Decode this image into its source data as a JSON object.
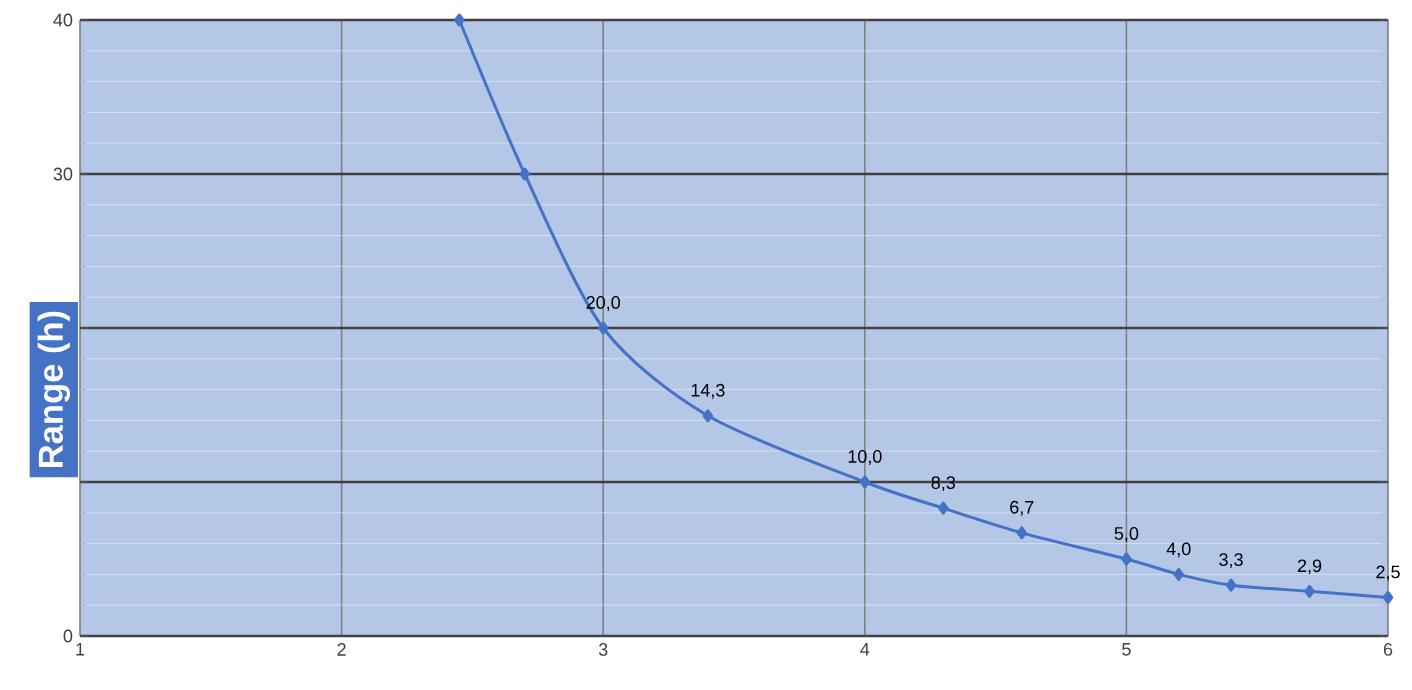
{
  "chart_data": {
    "type": "line",
    "ylabel": "Range (h)",
    "x": [
      2.45,
      2.7,
      3,
      3.4,
      4,
      4.3,
      4.6,
      5,
      5.2,
      5.4,
      5.7,
      6
    ],
    "series": [
      {
        "color": "#4472c4",
        "values": [
          40,
          30,
          20.0,
          14.3,
          10.0,
          8.3,
          6.7,
          5.0,
          4.0,
          3.3,
          2.9,
          2.5
        ],
        "value_labels": [
          null,
          null,
          "20,0",
          "14,3",
          "10,0",
          "8,3",
          "6,7",
          "5,0",
          "4,0",
          "3,3",
          "2,9",
          "2,5"
        ]
      }
    ],
    "xlim": [
      1,
      6
    ],
    "xticks": [
      1,
      2,
      3,
      4,
      5,
      6
    ],
    "ylim": [
      0,
      40
    ],
    "yticks": [
      0,
      {
        "value": 10,
        "label": null
      },
      {
        "value": 20,
        "label": null
      },
      30,
      40
    ],
    "grid": true,
    "marker": "diamond",
    "line_style": "solid"
  }
}
